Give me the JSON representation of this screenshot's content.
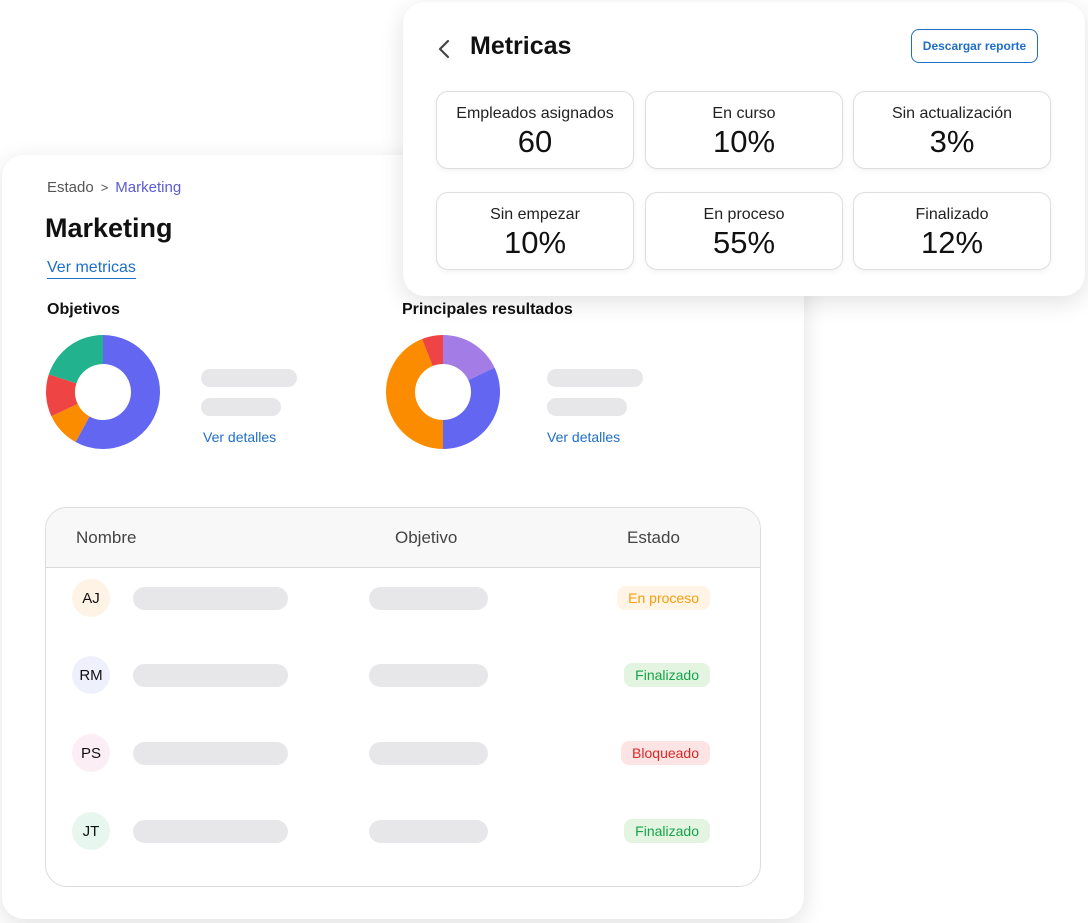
{
  "breadcrumb": {
    "root": "Estado",
    "separator": ">",
    "current": "Marketing"
  },
  "page": {
    "title": "Marketing",
    "metrics_link": "Ver metricas"
  },
  "objectives": {
    "title": "Objetivos",
    "details_link": "Ver detalles",
    "chart_data": {
      "type": "pie",
      "slices": [
        {
          "value": 58,
          "color": "#6366f1"
        },
        {
          "value": 10,
          "color": "#fb8c00"
        },
        {
          "value": 12,
          "color": "#ef4444"
        },
        {
          "value": 20,
          "color": "#22b28e"
        }
      ]
    }
  },
  "key_results": {
    "title": "Principales resultados",
    "details_link": "Ver detalles",
    "chart_data": {
      "type": "pie",
      "slices": [
        {
          "value": 18,
          "color": "#a37ce6"
        },
        {
          "value": 32,
          "color": "#6366f1"
        },
        {
          "value": 44,
          "color": "#fb8c00"
        },
        {
          "value": 6,
          "color": "#ef4444"
        }
      ]
    }
  },
  "table": {
    "headers": {
      "name": "Nombre",
      "objective": "Objetivo",
      "status": "Estado"
    },
    "rows": [
      {
        "initials": "AJ",
        "avatar_bg": "#fff3e6",
        "status": "En proceso",
        "status_color": "#f59e0b",
        "status_bg": "#fff4e5"
      },
      {
        "initials": "RM",
        "avatar_bg": "#eef1fb",
        "status": "Finalizado",
        "status_color": "#16a34a",
        "status_bg": "#e3f4e1"
      },
      {
        "initials": "PS",
        "avatar_bg": "#fbeef4",
        "status": "Bloqueado",
        "status_color": "#dc2626",
        "status_bg": "#fde4e4"
      },
      {
        "initials": "JT",
        "avatar_bg": "#e8f6f0",
        "status": "Finalizado",
        "status_color": "#16a34a",
        "status_bg": "#e3f4e1"
      }
    ]
  },
  "metrics": {
    "title": "Metricas",
    "download_label": "Descargar reporte",
    "items": [
      {
        "label": "Empleados asignados",
        "value": "60"
      },
      {
        "label": "En curso",
        "value": "10%"
      },
      {
        "label": "Sin actualización",
        "value": "3%"
      },
      {
        "label": "Sin empezar",
        "value": "10%"
      },
      {
        "label": "En proceso",
        "value": "55%"
      },
      {
        "label": "Finalizado",
        "value": "12%"
      }
    ]
  },
  "colors": {
    "accent": "#1f6fc8",
    "breadcrumb_current": "#5b5bd6"
  },
  "icons": {
    "back": "chevron-left-icon",
    "breadcrumb_separator": "chevron-right-icon"
  }
}
